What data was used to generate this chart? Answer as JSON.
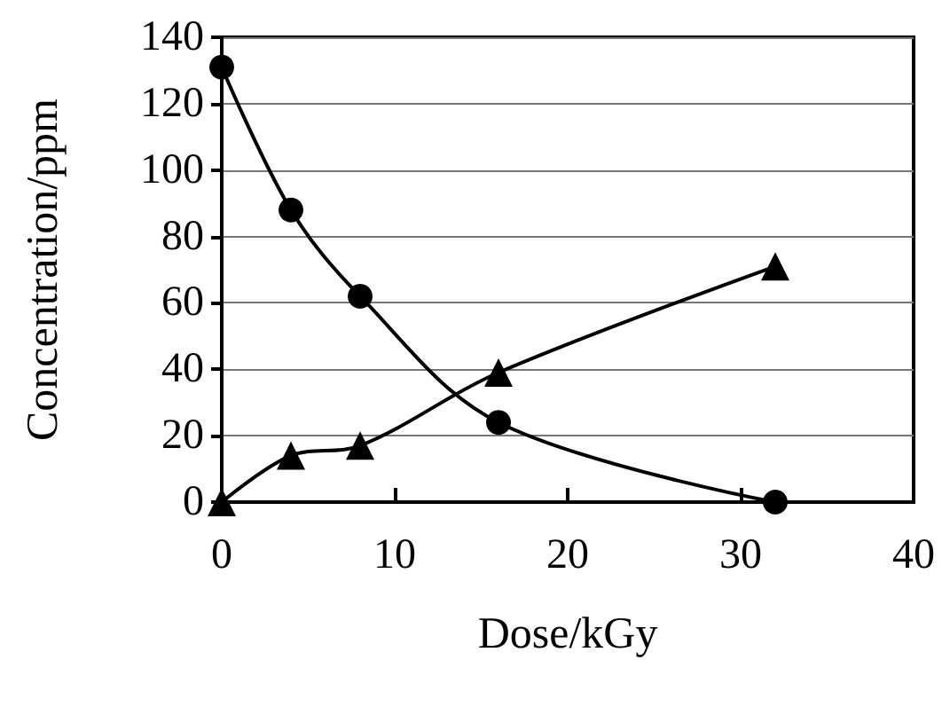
{
  "chart_data": {
    "type": "line",
    "xlabel": "Dose/kGy",
    "ylabel": "Concentration/ppm",
    "x": [
      0,
      4,
      8,
      16,
      32
    ],
    "series": [
      {
        "color": "#000000",
        "marker": "circle",
        "values": [
          131,
          88,
          62,
          24,
          0
        ]
      },
      {
        "color": "#000000",
        "marker": "triangle",
        "values": [
          0,
          14,
          17,
          39,
          71
        ]
      }
    ],
    "xlim": [
      0,
      40
    ],
    "xticks": [
      0,
      10,
      20,
      30,
      40
    ],
    "ylim": [
      0,
      140
    ],
    "yticks": [
      0,
      20,
      40,
      60,
      80,
      100,
      120,
      140
    ],
    "grid": "y",
    "line_style": "solid"
  }
}
